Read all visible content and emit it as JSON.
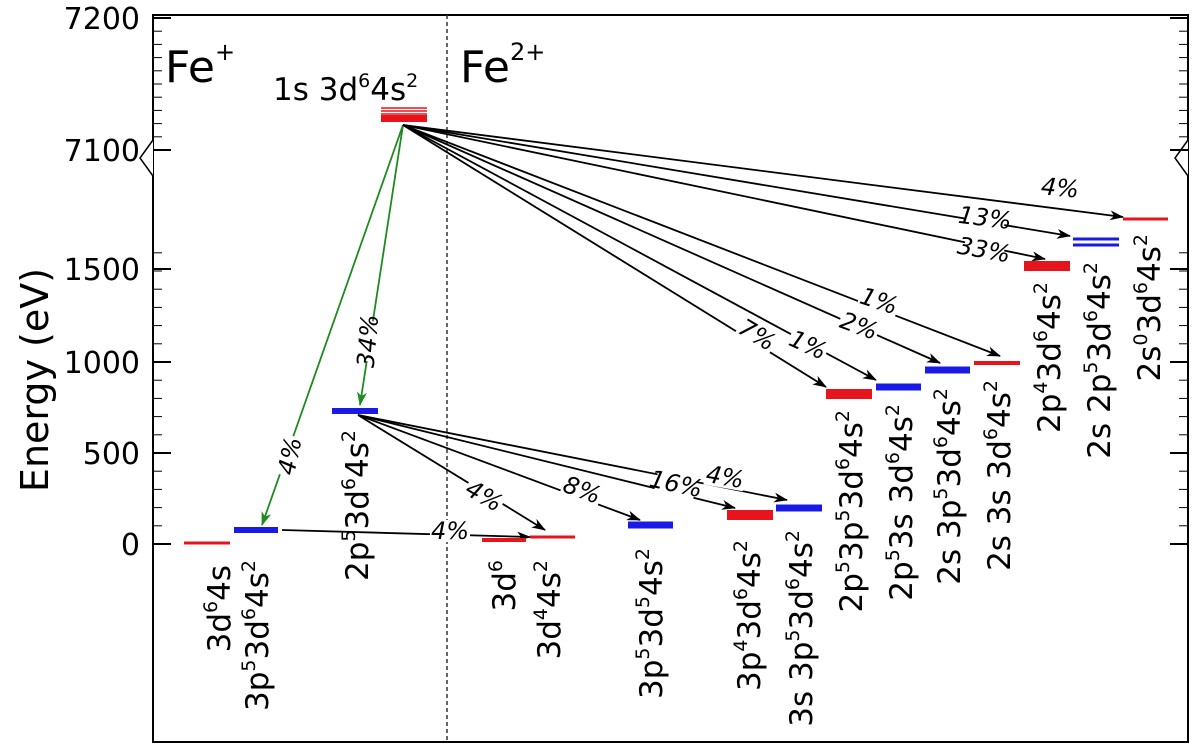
{
  "ion_labels": {
    "left": "Fe",
    "left_sup": "+",
    "right": "Fe",
    "right_sup": "2+"
  },
  "axis": {
    "title": "Energy (eV)",
    "ticks": [
      "0",
      "500",
      "1000",
      "1500",
      "7100",
      "7200"
    ]
  },
  "initial_state": {
    "parts": [
      [
        "1s 3d",
        "6",
        "4s",
        "2"
      ]
    ]
  },
  "levels": [
    {
      "id": "fe1-3d6-4s",
      "color": "#e8141c",
      "parts": [
        [
          "3d",
          "6",
          "4s",
          ""
        ]
      ]
    },
    {
      "id": "fe1-3p5-3d6-4s2",
      "color": "#1a1ae6",
      "parts": [
        [
          "3p",
          "5",
          "3d",
          "6",
          "4s",
          "2"
        ]
      ]
    },
    {
      "id": "fe1-2p5-3d6-4s2",
      "color": "#1a1ae6",
      "parts": [
        [
          "2p",
          "5",
          "3d",
          "6",
          "4s",
          "2"
        ]
      ]
    },
    {
      "id": "fe2-3d6",
      "color": "#e8141c",
      "parts": [
        [
          "3d",
          "6"
        ]
      ]
    },
    {
      "id": "fe2-3d4-4s2",
      "color": "#e8141c",
      "parts": [
        [
          "3d",
          "4",
          "4s",
          "2"
        ]
      ]
    },
    {
      "id": "fe2-3p5-3d5-4s2",
      "color": "#1a1ae6",
      "parts": [
        [
          "3p",
          "5",
          "3d",
          "5",
          "4s",
          "2"
        ]
      ]
    },
    {
      "id": "fe2-3p4-3d6-4s2",
      "color": "#e8141c",
      "parts": [
        [
          "3p",
          "4",
          "3d",
          "6",
          "4s",
          "2"
        ]
      ]
    },
    {
      "id": "fe2-3s-3p5-3d6-4s2",
      "color": "#1a1ae6",
      "parts": [
        [
          "3s 3p",
          "5",
          "3d",
          "6",
          "4s",
          "2"
        ]
      ]
    },
    {
      "id": "fe2-2p5-3p5-3d6-4s2",
      "color": "#e8141c",
      "parts": [
        [
          "2p",
          "5",
          "3p",
          "5",
          "3d",
          "6",
          "4s",
          "2"
        ]
      ]
    },
    {
      "id": "fe2-2p5-3s-3d6-4s2",
      "color": "#1a1ae6",
      "parts": [
        [
          "2p",
          "5",
          "3s 3d",
          "6",
          "4s",
          "2"
        ]
      ]
    },
    {
      "id": "fe2-2s-3p5-3d6-4s2",
      "color": "#1a1ae6",
      "parts": [
        [
          "2s 3p",
          "5",
          "3d",
          "6",
          "4s",
          "2"
        ]
      ]
    },
    {
      "id": "fe2-2s-3s-3d6-4s2",
      "color": "#e8141c",
      "parts": [
        [
          "2s 3s 3d",
          "6",
          "4s",
          "2"
        ]
      ]
    },
    {
      "id": "fe2-2p4-3d6-4s2",
      "color": "#e8141c",
      "parts": [
        [
          "2p",
          "4",
          "3d",
          "6",
          "4s",
          "2"
        ]
      ]
    },
    {
      "id": "fe2-2s-2p5-3d6-4s2",
      "color": "#1a1ae6",
      "parts": [
        [
          "2s 2p",
          "5",
          "3d",
          "6",
          "4s",
          "2"
        ]
      ]
    },
    {
      "id": "fe2-2s0-3d6-4s2",
      "color": "#e8141c",
      "parts": [
        [
          "2s",
          "0",
          "3d",
          "6",
          "4s",
          "2"
        ]
      ]
    }
  ],
  "transitions": [
    {
      "label": "4%"
    },
    {
      "label": "34%"
    },
    {
      "label": "4%"
    },
    {
      "label": "8%"
    },
    {
      "label": "16%"
    },
    {
      "label": "4%"
    },
    {
      "label": "4%"
    },
    {
      "label": "7%"
    },
    {
      "label": "1%"
    },
    {
      "label": "2%"
    },
    {
      "label": "1%"
    },
    {
      "label": "33%"
    },
    {
      "label": "13%"
    },
    {
      "label": "4%"
    }
  ]
}
